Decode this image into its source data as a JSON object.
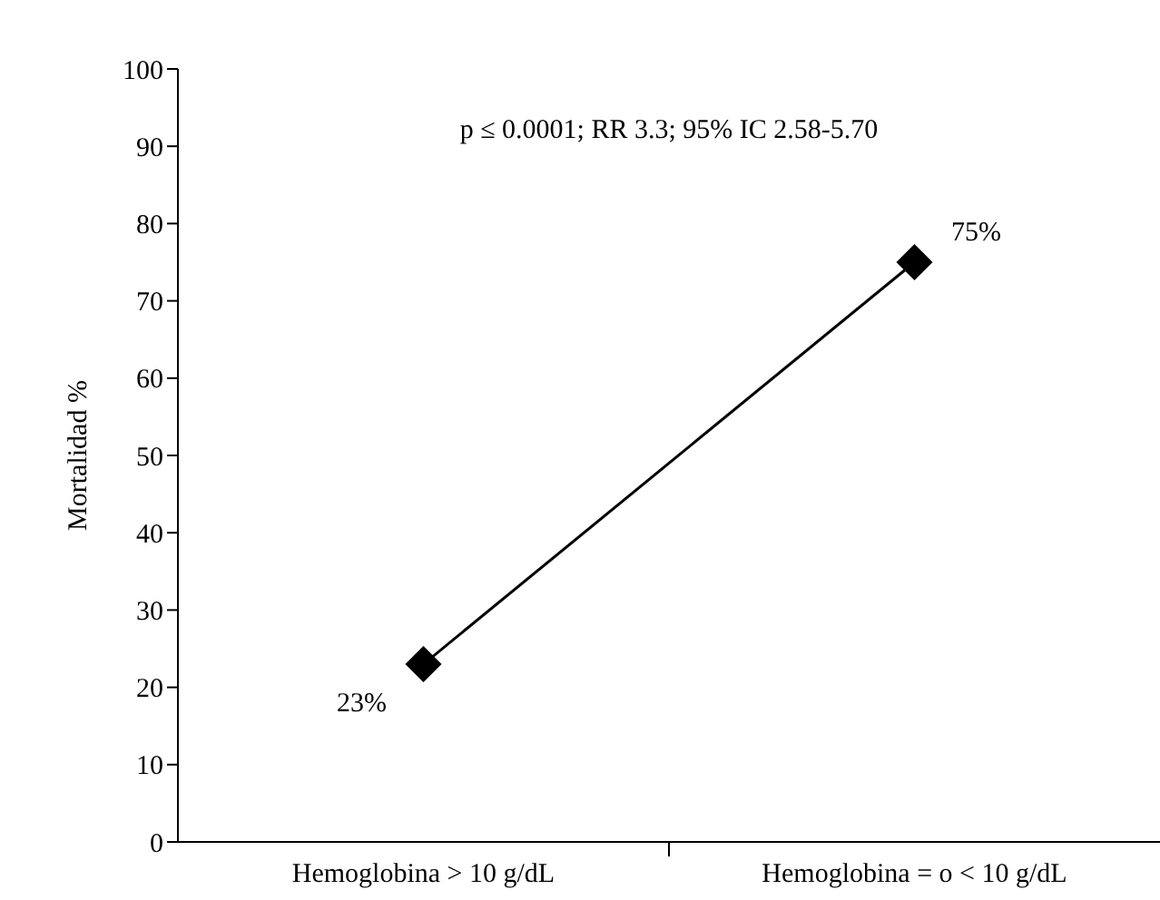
{
  "chart_data": {
    "type": "line",
    "ylabel": "Mortalidad %",
    "annotations": [
      "p ≤ 0.0001; RR 3.3; 95% IC 2.58-5.70"
    ],
    "categories": [
      "Hemoglobina > 10 g/dL",
      "Hemoglobina = o < 10 g/dL"
    ],
    "series": [
      {
        "color": "#000000",
        "values": [
          23,
          75
        ],
        "value_labels": [
          "23%",
          "75%"
        ]
      }
    ],
    "ylim": [
      0,
      100
    ],
    "yticks": [
      0,
      10,
      20,
      30,
      40,
      50,
      60,
      70,
      80,
      90,
      100
    ],
    "marker": "diamond",
    "line_style": "solid"
  }
}
